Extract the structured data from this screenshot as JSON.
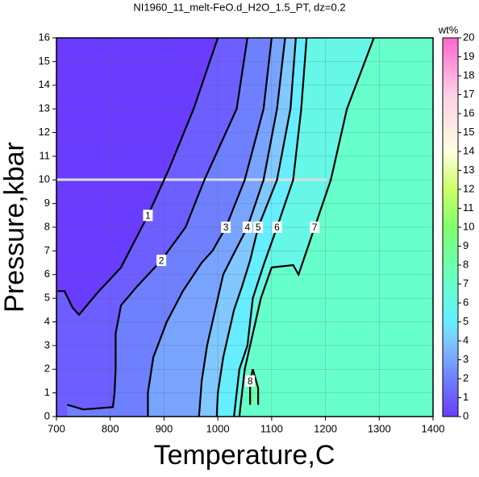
{
  "chart_data": {
    "type": "contour",
    "title": "NI1960_11_melt-FeO.d_H2O_1.5_PT, dz=0.2",
    "x_label": "Temperature,C",
    "y_label": "Pressure,kbar",
    "xlim": [
      700,
      1400
    ],
    "ylim": [
      0,
      16
    ],
    "xticks": [
      700,
      800,
      900,
      1000,
      1100,
      1200,
      1300,
      1400
    ],
    "yticks": [
      0,
      1,
      2,
      3,
      4,
      5,
      6,
      7,
      8,
      9,
      10,
      11,
      12,
      13,
      14,
      15,
      16
    ],
    "grid": true,
    "colorbar_label": "wt%",
    "colorbar_lim": [
      0,
      20
    ],
    "colorbar_ticks": [
      0,
      1,
      2,
      3,
      4,
      5,
      6,
      7,
      8,
      9,
      10,
      11,
      12,
      13,
      14,
      15,
      16,
      17,
      18,
      19,
      20
    ],
    "colormap": [
      [
        0,
        "#6a3cff"
      ],
      [
        2,
        "#6f80ff"
      ],
      [
        4,
        "#80c8ff"
      ],
      [
        5,
        "#66eeff"
      ],
      [
        7,
        "#66ffcc"
      ],
      [
        10,
        "#80ff70"
      ],
      [
        12,
        "#ccff66"
      ],
      [
        14,
        "#ffffe0"
      ],
      [
        17,
        "#ffd0e8"
      ],
      [
        20,
        "#ff66cc"
      ]
    ],
    "contours": [
      {
        "level": 1,
        "x": [
          1000,
          955,
          910,
          870,
          820,
          775,
          742,
          730,
          715,
          702
        ],
        "y": [
          16,
          13,
          10.5,
          8.5,
          6.3,
          5.2,
          4.3,
          4.6,
          5.3,
          5.3
        ]
      },
      {
        "level": 2,
        "x": [
          1055,
          1035,
          975,
          940,
          895,
          850,
          820,
          810,
          810,
          808,
          805,
          750,
          720
        ],
        "y": [
          16,
          13,
          10,
          8,
          6.6,
          5.5,
          4.7,
          3.5,
          2,
          1,
          0.4,
          0.3,
          0.5
        ]
      },
      {
        "level": 3,
        "x": [
          1100,
          1085,
          1050,
          1015,
          990,
          970,
          935,
          905,
          880,
          870,
          870
        ],
        "y": [
          16,
          13,
          10,
          8,
          7,
          6.5,
          5.3,
          4,
          2.5,
          1,
          0
        ]
      },
      {
        "level": 4,
        "x": [
          1125,
          1110,
          1085,
          1055,
          1030,
          1010,
          995,
          980,
          970,
          965
        ],
        "y": [
          16,
          13,
          10,
          8,
          6.9,
          6,
          4.5,
          3,
          1.5,
          0
        ]
      },
      {
        "level": 5,
        "x": [
          1145,
          1135,
          1110,
          1075,
          1060,
          1045,
          1030,
          1010,
          1000,
          998
        ],
        "y": [
          16,
          13,
          10,
          8,
          6.6,
          5.5,
          4.5,
          2.5,
          1,
          0
        ]
      },
      {
        "level": 6,
        "x": [
          1165,
          1155,
          1140,
          1110,
          1085,
          1065,
          1055,
          1040,
          1030
        ],
        "y": [
          16,
          13,
          10,
          8,
          6.4,
          5,
          3,
          2,
          0
        ]
      },
      {
        "level": 7,
        "x": [
          1290,
          1240,
          1210,
          1180,
          1150,
          1140,
          1100,
          1080,
          1060,
          1050,
          1040
        ],
        "y": [
          16,
          13,
          10,
          8,
          6,
          6.4,
          6.3,
          5,
          3,
          2,
          0
        ]
      },
      {
        "level": 8,
        "x": [
          1060,
          1060,
          1065,
          1075,
          1075
        ],
        "y": [
          0.5,
          1.5,
          2,
          1.2,
          0.5
        ]
      }
    ]
  }
}
